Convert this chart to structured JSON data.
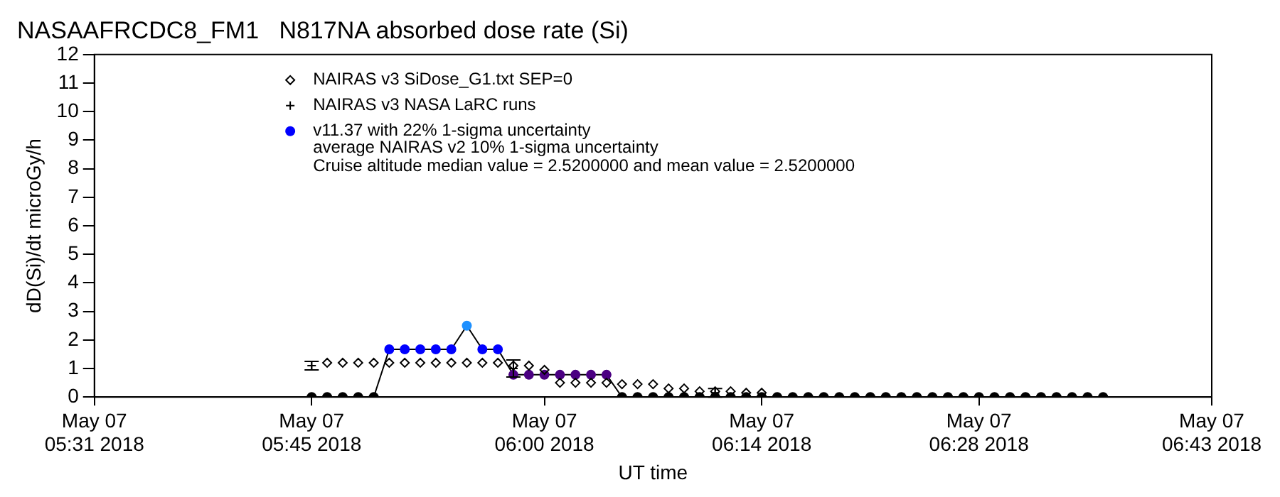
{
  "chart_data": {
    "type": "line",
    "title": "NASAAFRCDC8_FM1   N817NA absorbed dose rate (Si)",
    "xlabel": "UT time",
    "ylabel": "dD(Si)/dt microGy/h",
    "xlim": [
      "2018-05-07T05:31",
      "2018-05-07T06:43"
    ],
    "xticks": [
      {
        "value": "2018-05-07T05:31",
        "label": "May 07\n05:31 2018"
      },
      {
        "value": "2018-05-07T05:45",
        "label": "May 07\n05:45 2018"
      },
      {
        "value": "2018-05-07T06:00",
        "label": "May 07\n06:00 2018"
      },
      {
        "value": "2018-05-07T06:14",
        "label": "May 07\n06:14 2018"
      },
      {
        "value": "2018-05-07T06:28",
        "label": "May 07\n06:28 2018"
      },
      {
        "value": "2018-05-07T06:43",
        "label": "May 07\n06:43 2018"
      }
    ],
    "ylim": [
      0,
      12
    ],
    "yticks": [
      0,
      1,
      2,
      3,
      4,
      5,
      6,
      7,
      8,
      9,
      10,
      11,
      12
    ],
    "grid": false,
    "legend": "top",
    "annotations": [
      "average NAIRAS v2 10% 1-sigma uncertainty",
      "Cruise altitude median value = 2.5200000 and mean value = 2.5200000"
    ],
    "series": [
      {
        "name": "NAIRAS v3 SiDose_G1.txt SEP=0",
        "type": "scatter",
        "marker": "diamond",
        "color": "#000000",
        "x": [
          "2018-05-07T05:46",
          "2018-05-07T05:47",
          "2018-05-07T05:48",
          "2018-05-07T05:49",
          "2018-05-07T05:50",
          "2018-05-07T05:51",
          "2018-05-07T05:52",
          "2018-05-07T05:53",
          "2018-05-07T05:54",
          "2018-05-07T05:55",
          "2018-05-07T05:56",
          "2018-05-07T05:57",
          "2018-05-07T05:58",
          "2018-05-07T05:59",
          "2018-05-07T06:00",
          "2018-05-07T06:01",
          "2018-05-07T06:02",
          "2018-05-07T06:03",
          "2018-05-07T06:04",
          "2018-05-07T06:05",
          "2018-05-07T06:06",
          "2018-05-07T06:07",
          "2018-05-07T06:08",
          "2018-05-07T06:09",
          "2018-05-07T06:10",
          "2018-05-07T06:11",
          "2018-05-07T06:12",
          "2018-05-07T06:13",
          "2018-05-07T06:14"
        ],
        "values": [
          1.2,
          1.2,
          1.2,
          1.2,
          1.2,
          1.2,
          1.2,
          1.2,
          1.2,
          1.2,
          1.2,
          1.2,
          1.1,
          1.1,
          0.95,
          0.5,
          0.5,
          0.5,
          0.5,
          0.45,
          0.45,
          0.45,
          0.3,
          0.3,
          0.2,
          0.2,
          0.2,
          0.15,
          0.15
        ]
      },
      {
        "name": "NAIRAS v3 NASA LaRC runs",
        "type": "scatter",
        "marker": "cross",
        "color": "#000000",
        "x": [
          "2018-05-07T05:45",
          "2018-05-07T05:58",
          "2018-05-07T06:11"
        ],
        "values": [
          1.1,
          1.0,
          0.15
        ],
        "errors": [
          0.15,
          0.3,
          0.15
        ]
      },
      {
        "name": "v11.37 with 22% 1-sigma uncertainty",
        "marker": "circle",
        "color": "#000000",
        "x": [
          "2018-05-07T05:45",
          "2018-05-07T05:46",
          "2018-05-07T05:47",
          "2018-05-07T05:48",
          "2018-05-07T05:49",
          "2018-05-07T05:50",
          "2018-05-07T05:51",
          "2018-05-07T05:52",
          "2018-05-07T05:53",
          "2018-05-07T05:54",
          "2018-05-07T05:55",
          "2018-05-07T05:56",
          "2018-05-07T05:57",
          "2018-05-07T05:58",
          "2018-05-07T05:59",
          "2018-05-07T06:00",
          "2018-05-07T06:01",
          "2018-05-07T06:02",
          "2018-05-07T06:03",
          "2018-05-07T06:04",
          "2018-05-07T06:05",
          "2018-05-07T06:06",
          "2018-05-07T06:07",
          "2018-05-07T06:08",
          "2018-05-07T06:09",
          "2018-05-07T06:10",
          "2018-05-07T06:11",
          "2018-05-07T06:12",
          "2018-05-07T06:13",
          "2018-05-07T06:14",
          "2018-05-07T06:15",
          "2018-05-07T06:16",
          "2018-05-07T06:17",
          "2018-05-07T06:18",
          "2018-05-07T06:19",
          "2018-05-07T06:20",
          "2018-05-07T06:21",
          "2018-05-07T06:22",
          "2018-05-07T06:23",
          "2018-05-07T06:24",
          "2018-05-07T06:25",
          "2018-05-07T06:26",
          "2018-05-07T06:27",
          "2018-05-07T06:28",
          "2018-05-07T06:29",
          "2018-05-07T06:30",
          "2018-05-07T06:31",
          "2018-05-07T06:32",
          "2018-05-07T06:33",
          "2018-05-07T06:34",
          "2018-05-07T06:35",
          "2018-05-07T06:36"
        ],
        "values": [
          0,
          0,
          0,
          0,
          0,
          1.67,
          1.67,
          1.67,
          1.67,
          1.67,
          2.5,
          1.67,
          1.67,
          0.78,
          0.78,
          0.78,
          0.78,
          0.78,
          0.78,
          0.78,
          0,
          0,
          0,
          0,
          0,
          0,
          0,
          0,
          0,
          0,
          0,
          0,
          0,
          0,
          0,
          0,
          0,
          0,
          0,
          0,
          0,
          0,
          0,
          0,
          0,
          0,
          0,
          0,
          0,
          0,
          0,
          0
        ],
        "colors": [
          "#000000",
          "#000000",
          "#000000",
          "#000000",
          "#000000",
          "#0000ff",
          "#0000ff",
          "#0000ff",
          "#0000ff",
          "#0000ff",
          "#1e90ff",
          "#0000ff",
          "#0000ff",
          "#4b0082",
          "#4b0082",
          "#4b0082",
          "#4b0082",
          "#4b0082",
          "#4b0082",
          "#4b0082",
          "#000000",
          "#000000",
          "#000000",
          "#000000",
          "#000000",
          "#000000",
          "#000000",
          "#000000",
          "#000000",
          "#000000",
          "#000000",
          "#000000",
          "#000000",
          "#000000",
          "#000000",
          "#000000",
          "#000000",
          "#000000",
          "#000000",
          "#000000",
          "#000000",
          "#000000",
          "#000000",
          "#000000",
          "#000000",
          "#000000",
          "#000000",
          "#000000",
          "#000000",
          "#000000",
          "#000000",
          "#000000"
        ]
      }
    ]
  }
}
